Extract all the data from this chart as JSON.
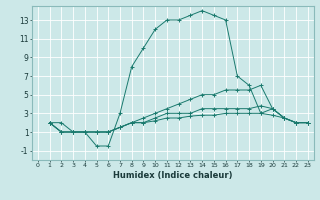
{
  "xlabel": "Humidex (Indice chaleur)",
  "background_color": "#cce8e8",
  "grid_color": "#ffffff",
  "line_color": "#1a7a6e",
  "xlim": [
    -0.5,
    23.5
  ],
  "ylim": [
    -2,
    14.5
  ],
  "xticks": [
    0,
    1,
    2,
    3,
    4,
    5,
    6,
    7,
    8,
    9,
    10,
    11,
    12,
    13,
    14,
    15,
    16,
    17,
    18,
    19,
    20,
    21,
    22,
    23
  ],
  "yticks": [
    -1,
    1,
    3,
    5,
    7,
    9,
    11,
    13
  ],
  "line1_x": [
    1,
    2,
    3,
    4,
    5,
    6,
    7,
    8,
    9,
    10,
    11,
    12,
    13,
    14,
    15,
    16,
    17,
    18,
    19,
    20,
    21,
    22,
    23
  ],
  "line1_y": [
    2,
    2,
    1,
    1,
    -0.5,
    -0.5,
    3,
    8,
    10,
    12,
    13,
    13,
    13.5,
    14,
    13.5,
    13,
    7,
    6,
    3,
    3.5,
    2.5,
    2,
    2
  ],
  "line2_x": [
    1,
    2,
    3,
    4,
    5,
    6,
    7,
    8,
    9,
    10,
    11,
    12,
    13,
    14,
    15,
    16,
    17,
    18,
    19,
    20,
    21,
    22,
    23
  ],
  "line2_y": [
    2,
    1,
    1,
    1,
    1,
    1,
    1.5,
    2,
    2.5,
    3,
    3.5,
    4,
    4.5,
    5,
    5,
    5.5,
    5.5,
    5.5,
    6,
    3.5,
    2.5,
    2,
    2
  ],
  "line3_x": [
    1,
    2,
    3,
    4,
    5,
    6,
    7,
    8,
    9,
    10,
    11,
    12,
    13,
    14,
    15,
    16,
    17,
    18,
    19,
    20,
    21,
    22,
    23
  ],
  "line3_y": [
    2,
    1,
    1,
    1,
    1,
    1,
    1.5,
    2,
    2,
    2.5,
    3,
    3,
    3,
    3.5,
    3.5,
    3.5,
    3.5,
    3.5,
    3.8,
    3.5,
    2.5,
    2,
    2
  ],
  "line4_x": [
    1,
    2,
    3,
    4,
    5,
    6,
    7,
    8,
    9,
    10,
    11,
    12,
    13,
    14,
    15,
    16,
    17,
    18,
    19,
    20,
    21,
    22,
    23
  ],
  "line4_y": [
    2,
    1,
    1,
    1,
    1,
    1,
    1.5,
    2,
    2,
    2.2,
    2.5,
    2.5,
    2.7,
    2.8,
    2.8,
    3,
    3,
    3,
    3,
    2.8,
    2.5,
    2,
    2
  ],
  "figsize": [
    3.2,
    2.0
  ],
  "dpi": 100
}
